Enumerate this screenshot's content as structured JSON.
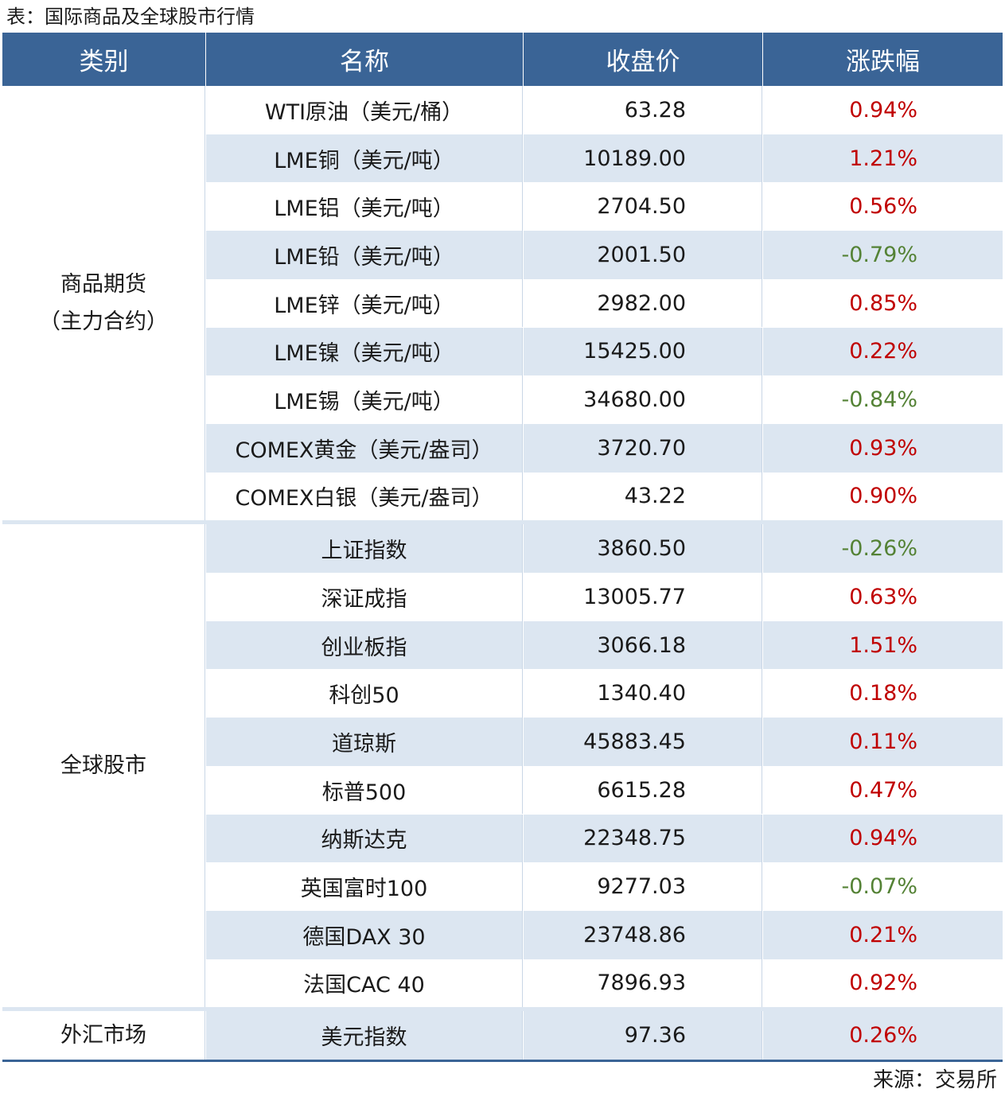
{
  "title": "表：国际商品及全球股市行情",
  "header": [
    "类别",
    "名称",
    "收盘价",
    "涨跌幅"
  ],
  "groups": [
    {
      "category": "商品期货\n（主力合约）",
      "rows": [
        [
          "WTI原油（美元/桶）",
          "63.28",
          "0.94%"
        ],
        [
          "LME铜（美元/吨）",
          "10189.00",
          "1.21%"
        ],
        [
          "LME铝（美元/吨）",
          "2704.50",
          "0.56%"
        ],
        [
          "LME铅（美元/吨）",
          "2001.50",
          "-0.79%"
        ],
        [
          "LME锌（美元/吨）",
          "2982.00",
          "0.85%"
        ],
        [
          "LME镍（美元/吨）",
          "15425.00",
          "0.22%"
        ],
        [
          "LME锡（美元/吨）",
          "34680.00",
          "-0.84%"
        ],
        [
          "COMEX黄金（美元/盎司）",
          "3720.70",
          "0.93%"
        ],
        [
          "COMEX白银（美元/盎司）",
          "43.22",
          "0.90%"
        ]
      ]
    },
    {
      "category": "全球股市",
      "rows": [
        [
          "上证指数",
          "3860.50",
          "-0.26%"
        ],
        [
          "深证成指",
          "13005.77",
          "0.63%"
        ],
        [
          "创业板指",
          "3066.18",
          "1.51%"
        ],
        [
          "科创50",
          "1340.40",
          "0.18%"
        ],
        [
          "道琼斯",
          "45883.45",
          "0.11%"
        ],
        [
          "标普500",
          "6615.28",
          "0.47%"
        ],
        [
          "纳斯达克",
          "22348.75",
          "0.94%"
        ],
        [
          "英国富时100",
          "9277.03",
          "-0.07%"
        ],
        [
          "德国DAX 30",
          "23748.86",
          "0.21%"
        ],
        [
          "法国CAC 40",
          "7896.93",
          "0.92%"
        ]
      ]
    },
    {
      "category": "外汇市场",
      "rows": [
        [
          "美元指数",
          "97.36",
          "0.26%"
        ]
      ]
    }
  ],
  "source": "来源：交易所"
}
